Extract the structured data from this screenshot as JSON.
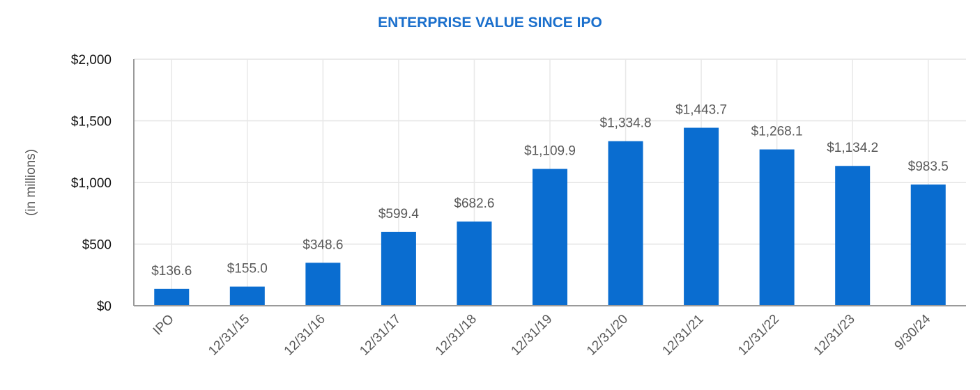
{
  "chart_data": {
    "type": "bar",
    "title": "ENTERPRISE VALUE SINCE IPO",
    "ylabel": "(in millions)",
    "xlabel": "",
    "categories": [
      "IPO",
      "12/31/15",
      "12/31/16",
      "12/31/17",
      "12/31/18",
      "12/31/19",
      "12/31/20",
      "12/31/21",
      "12/31/22",
      "12/31/23",
      "9/30/24"
    ],
    "values": [
      136.6,
      155.0,
      348.6,
      599.4,
      682.6,
      1109.9,
      1334.8,
      1443.7,
      1268.1,
      1134.2,
      983.5
    ],
    "data_labels": [
      "$136.6",
      "$155.0",
      "$348.6",
      "$599.4",
      "$682.6",
      "$1,109.9",
      "$1,334.8",
      "$1,443.7",
      "$1,268.1",
      "$1,134.2",
      "$983.5"
    ],
    "yticks": [
      0,
      500,
      1000,
      1500,
      2000
    ],
    "ytick_labels": [
      "$0",
      "$500",
      "$1,000",
      "$1,500",
      "$2,000"
    ],
    "ylim": [
      0,
      2000
    ],
    "grid": true,
    "bar_color": "#0a6dd0",
    "title_color": "#1a6fcc"
  }
}
